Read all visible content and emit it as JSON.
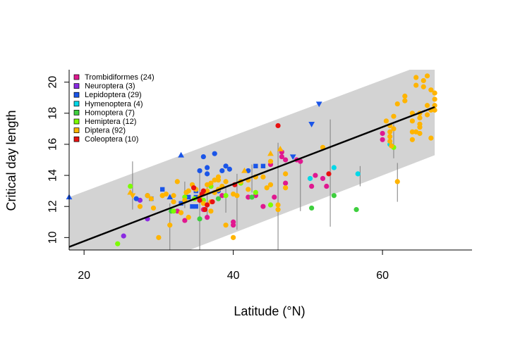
{
  "chart_data": {
    "type": "scatter",
    "title": "",
    "xlabel": "Latitude (°N)",
    "ylabel": "Critical day length",
    "xlim": [
      18,
      72
    ],
    "ylim": [
      9.2,
      20.8
    ],
    "xticks": [
      20,
      40,
      60
    ],
    "yticks": [
      10,
      12,
      14,
      16,
      18,
      20
    ],
    "grid": false,
    "legend_position": "top-left",
    "colors": {
      "band": "#d3d3d3",
      "regression": "#000000",
      "error_bar": "#808080"
    },
    "regression": {
      "x": [
        18,
        67
      ],
      "y": [
        9.4,
        18.4
      ]
    },
    "band": {
      "x": [
        18,
        67
      ],
      "upper": [
        12.6,
        21.4
      ],
      "lower": [
        6.2,
        15.3
      ]
    },
    "series": [
      {
        "name": "Trombidiformes (24)",
        "color": "#e01890",
        "marker": "circle",
        "points": [
          [
            32.5,
            11.7
          ],
          [
            36,
            11.8
          ],
          [
            38.5,
            12.7
          ],
          [
            40,
            11
          ],
          [
            40,
            10.8
          ],
          [
            42,
            12.6
          ],
          [
            43,
            12.7
          ],
          [
            44,
            12
          ],
          [
            45,
            14.7
          ],
          [
            45.5,
            12.6
          ],
          [
            46.5,
            15.5
          ],
          [
            46.5,
            15.2
          ],
          [
            48.5,
            15
          ],
          [
            49,
            14.9
          ],
          [
            51,
            14
          ],
          [
            52,
            13.8
          ],
          [
            52.5,
            13.3
          ],
          [
            60,
            16.7
          ],
          [
            60,
            16.3
          ],
          [
            47,
            15
          ],
          [
            36.5,
            11.3
          ],
          [
            47,
            13.5
          ],
          [
            33.5,
            11.1
          ],
          [
            50.5,
            13.3
          ]
        ]
      },
      {
        "name": "Neuroptera (3)",
        "color": "#8a2be2",
        "marker": "circle",
        "points": [
          [
            25.3,
            10.1
          ],
          [
            27.5,
            12.4
          ],
          [
            28.5,
            11.2
          ]
        ]
      },
      {
        "name": "Lepidoptera (29)",
        "color": "#1a55e8",
        "marker": "mixed",
        "points": [
          [
            18,
            12.6,
            "tri"
          ],
          [
            27,
            12.5,
            "circle"
          ],
          [
            28.5,
            12.7,
            "circle"
          ],
          [
            29,
            12.5,
            "square"
          ],
          [
            30.5,
            13.1,
            "square"
          ],
          [
            31.5,
            12.6,
            "tri"
          ],
          [
            33,
            12.2,
            "square"
          ],
          [
            34,
            12.6,
            "square"
          ],
          [
            34.5,
            12,
            "square"
          ],
          [
            35,
            13,
            "square"
          ],
          [
            35.5,
            14.3,
            "circle"
          ],
          [
            36,
            15.2,
            "circle"
          ],
          [
            36.5,
            14.5,
            "circle"
          ],
          [
            36.5,
            14.1,
            "circle"
          ],
          [
            37,
            13.3,
            "circle"
          ],
          [
            37.5,
            15.4,
            "circle"
          ],
          [
            38,
            13,
            "circle"
          ],
          [
            39,
            14.6,
            "circle"
          ],
          [
            39.5,
            14.4,
            "circle"
          ],
          [
            38.5,
            14.3,
            "circle"
          ],
          [
            42,
            14.3,
            "circle"
          ],
          [
            43,
            14.6,
            "square"
          ],
          [
            44,
            14.6,
            "square"
          ],
          [
            48,
            15.2,
            "tri-down"
          ],
          [
            50.5,
            17.3,
            "tri-down"
          ],
          [
            51.5,
            18.6,
            "tri-down"
          ],
          [
            33,
            15.3,
            "tri"
          ],
          [
            35,
            12.6,
            "square"
          ],
          [
            35,
            12,
            "square"
          ]
        ]
      },
      {
        "name": "Hymenoptera (4)",
        "color": "#00d8e8",
        "marker": "circle",
        "points": [
          [
            50.3,
            13.8
          ],
          [
            53.5,
            14.5
          ],
          [
            56.7,
            14.1
          ],
          [
            61,
            16
          ]
        ]
      },
      {
        "name": "Homoptera (7)",
        "color": "#3ecf3e",
        "marker": "circle",
        "points": [
          [
            31.7,
            11.7
          ],
          [
            35.5,
            11.2
          ],
          [
            38,
            12.5
          ],
          [
            42.5,
            12.6
          ],
          [
            50.5,
            11.9
          ],
          [
            53.5,
            12.7
          ],
          [
            56.5,
            11.8
          ]
        ]
      },
      {
        "name": "Hemiptera (12)",
        "color": "#7cfc00",
        "marker": "circle",
        "points": [
          [
            24.5,
            9.6
          ],
          [
            26.2,
            13.3
          ],
          [
            32,
            11.7
          ],
          [
            33.5,
            12.6
          ],
          [
            34.8,
            12.5
          ],
          [
            36,
            12.4
          ],
          [
            37,
            13.3
          ],
          [
            39,
            12.7
          ],
          [
            41,
            13.5
          ],
          [
            43,
            12.9
          ],
          [
            45,
            12.1
          ],
          [
            61.5,
            15.8
          ]
        ]
      },
      {
        "name": "Diptera (92)",
        "color": "#ffb400",
        "marker": "mixed",
        "points": [
          [
            26.2,
            12.9,
            "tri"
          ],
          [
            26.5,
            12.7,
            "tri-down"
          ],
          [
            27.5,
            12,
            "circle"
          ],
          [
            28.5,
            12.7,
            "circle"
          ],
          [
            29,
            12.5,
            "circle"
          ],
          [
            29.3,
            11.9,
            "circle"
          ],
          [
            30,
            10,
            "circle"
          ],
          [
            30.5,
            12.7,
            "circle"
          ],
          [
            31,
            12.8,
            "circle"
          ],
          [
            31.5,
            10.8,
            "circle"
          ],
          [
            32,
            12.7,
            "circle"
          ],
          [
            32.5,
            13.6,
            "circle"
          ],
          [
            33,
            11.6,
            "circle"
          ],
          [
            33.5,
            12.4,
            "circle"
          ],
          [
            34,
            13,
            "circle"
          ],
          [
            34.5,
            13.4,
            "circle"
          ],
          [
            35,
            13.1,
            "circle"
          ],
          [
            35.5,
            12.6,
            "circle"
          ],
          [
            36,
            12.9,
            "circle"
          ],
          [
            36,
            12.2,
            "circle"
          ],
          [
            36.5,
            13,
            "circle"
          ],
          [
            37,
            13.5,
            "circle"
          ],
          [
            37.5,
            13.7,
            "circle"
          ],
          [
            37.5,
            12.9,
            "circle"
          ],
          [
            38,
            13.1,
            "circle"
          ],
          [
            38,
            13.7,
            "circle"
          ],
          [
            38.5,
            13.3,
            "circle"
          ],
          [
            39,
            13.6,
            "circle"
          ],
          [
            39,
            10.8,
            "circle"
          ],
          [
            40,
            12.8,
            "circle"
          ],
          [
            40,
            10,
            "circle"
          ],
          [
            40.5,
            12.7,
            "circle"
          ],
          [
            41,
            13.6,
            "circle"
          ],
          [
            41.5,
            14.3,
            "tri"
          ],
          [
            42,
            13.1,
            "circle"
          ],
          [
            43,
            13.9,
            "circle"
          ],
          [
            44,
            13.9,
            "circle"
          ],
          [
            44.5,
            13.2,
            "circle"
          ],
          [
            45,
            15.4,
            "tri"
          ],
          [
            45,
            14.9,
            "circle"
          ],
          [
            46,
            12.1,
            "circle"
          ],
          [
            46,
            11.8,
            "circle"
          ],
          [
            46.3,
            15.7,
            "tri"
          ],
          [
            47,
            14.1,
            "circle"
          ],
          [
            47,
            13.2,
            "circle"
          ],
          [
            52,
            15.8,
            "circle"
          ],
          [
            60.5,
            17.5,
            "circle"
          ],
          [
            61,
            17.2,
            "circle"
          ],
          [
            61,
            16.8,
            "circle"
          ],
          [
            61,
            16.5,
            "circle"
          ],
          [
            61,
            16.2,
            "circle"
          ],
          [
            61.2,
            15.9,
            "circle"
          ],
          [
            61.5,
            17.8,
            "circle"
          ],
          [
            61.5,
            17,
            "circle"
          ],
          [
            62,
            18.6,
            "circle"
          ],
          [
            62,
            13.6,
            "circle"
          ],
          [
            63,
            18.8,
            "circle"
          ],
          [
            63,
            19.1,
            "circle"
          ],
          [
            64,
            16.3,
            "circle"
          ],
          [
            64,
            16.8,
            "circle"
          ],
          [
            64,
            17.5,
            "circle"
          ],
          [
            64,
            18,
            "circle"
          ],
          [
            64.5,
            19.8,
            "circle"
          ],
          [
            64.5,
            20.3,
            "circle"
          ],
          [
            65,
            17.7,
            "circle"
          ],
          [
            65,
            18,
            "circle"
          ],
          [
            65,
            16.7,
            "circle"
          ],
          [
            65,
            17.1,
            "circle"
          ],
          [
            65.5,
            19.7,
            "circle"
          ],
          [
            65.5,
            20.1,
            "circle"
          ],
          [
            66,
            20.4,
            "circle"
          ],
          [
            66,
            18.5,
            "circle"
          ],
          [
            66,
            17.9,
            "circle"
          ],
          [
            66.5,
            18.2,
            "circle"
          ],
          [
            66.5,
            16.4,
            "circle"
          ],
          [
            66.5,
            19.5,
            "circle"
          ],
          [
            67,
            18.5,
            "circle"
          ],
          [
            67,
            18.9,
            "circle"
          ],
          [
            67,
            19.3,
            "circle"
          ],
          [
            67,
            18.2,
            "circle"
          ],
          [
            64.5,
            16.8,
            "circle"
          ],
          [
            65,
            17.3,
            "circle"
          ],
          [
            36.5,
            13.4,
            "circle"
          ],
          [
            37,
            12.3,
            "circle"
          ],
          [
            38,
            13.9,
            "circle"
          ],
          [
            33.7,
            12.9,
            "circle"
          ],
          [
            32,
            12.3,
            "circle"
          ],
          [
            34,
            11.3,
            "circle"
          ],
          [
            37,
            11.7,
            "circle"
          ],
          [
            30.5,
            12.7,
            "circle"
          ],
          [
            42,
            13.7,
            "circle"
          ],
          [
            45,
            13.4,
            "circle"
          ]
        ]
      },
      {
        "name": "Coleoptera (10)",
        "color": "#e81010",
        "marker": "circle",
        "points": [
          [
            34.7,
            13.2
          ],
          [
            35.5,
            12.4
          ],
          [
            35.8,
            12.8
          ],
          [
            36,
            13
          ],
          [
            36.2,
            11.8
          ],
          [
            36.5,
            12.1
          ],
          [
            37.2,
            12.3
          ],
          [
            40.2,
            13.4
          ],
          [
            46,
            17.2
          ],
          [
            52.8,
            14.1
          ]
        ]
      }
    ],
    "error_bars": [
      [
        26.5,
        14.9,
        11.8
      ],
      [
        31.5,
        12.2,
        9.2
      ],
      [
        33.5,
        13.6,
        11.9
      ],
      [
        35.5,
        14.4,
        9.2
      ],
      [
        36.5,
        13.4,
        11.4
      ],
      [
        39,
        13.3,
        11.6
      ],
      [
        40.5,
        14.1,
        10.5
      ],
      [
        42.5,
        14.7,
        12.9
      ],
      [
        46,
        16.1,
        9.2
      ],
      [
        49,
        14.8,
        11.7
      ],
      [
        53,
        17.6,
        10.7
      ],
      [
        57,
        14.6,
        13.3
      ],
      [
        61.5,
        17.3,
        15.1
      ],
      [
        62,
        14.8,
        12.3
      ]
    ]
  }
}
